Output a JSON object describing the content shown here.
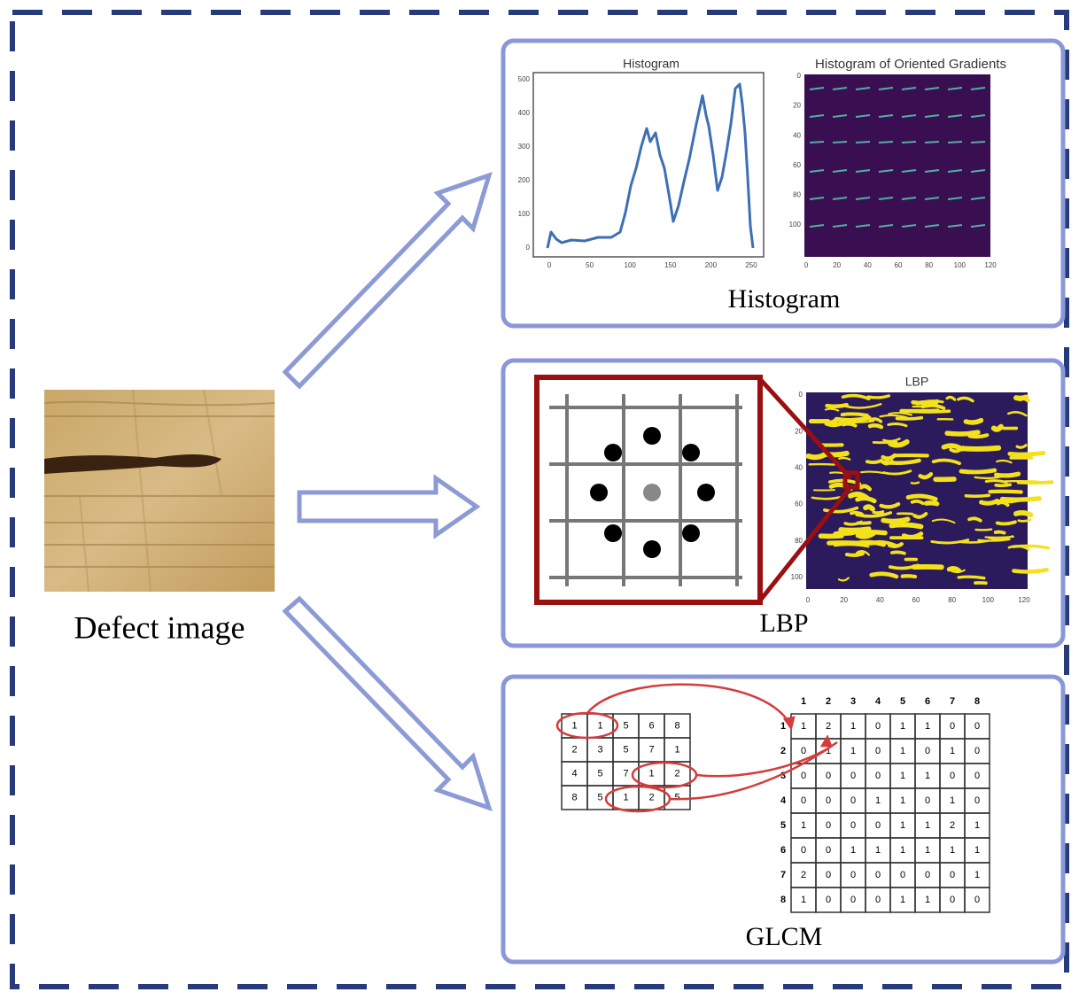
{
  "defect_image": {
    "label": "Defect image"
  },
  "histogram_panel": {
    "label": "Histogram",
    "histogram_plot": {
      "title": "Histogram",
      "xticks": [
        0,
        50,
        100,
        150,
        200,
        250
      ],
      "yticks": [
        0,
        100,
        200,
        300,
        400,
        500
      ]
    },
    "hog_plot": {
      "title": "Histogram of Oriented Gradients",
      "xticks": [
        0,
        20,
        40,
        60,
        80,
        100,
        120
      ],
      "yticks": [
        0,
        20,
        40,
        60,
        80,
        100
      ]
    }
  },
  "lbp_panel": {
    "label": "LBP",
    "lbp_plot": {
      "title": "LBP",
      "xticks": [
        0,
        20,
        40,
        60,
        80,
        100,
        120
      ],
      "yticks": [
        0,
        20,
        40,
        60,
        80,
        100
      ]
    }
  },
  "glcm_panel": {
    "label": "GLCM",
    "input_matrix": [
      [
        1,
        1,
        5,
        6,
        8
      ],
      [
        2,
        3,
        5,
        7,
        1
      ],
      [
        4,
        5,
        7,
        1,
        2
      ],
      [
        8,
        5,
        1,
        2,
        5
      ]
    ],
    "glcm_matrix": {
      "column_headers": [
        1,
        2,
        3,
        4,
        5,
        6,
        7,
        8
      ],
      "row_headers": [
        1,
        2,
        3,
        4,
        5,
        6,
        7,
        8
      ],
      "rows": [
        [
          1,
          2,
          1,
          0,
          1,
          1,
          0,
          0
        ],
        [
          0,
          1,
          1,
          0,
          1,
          0,
          1,
          0
        ],
        [
          0,
          0,
          0,
          0,
          1,
          1,
          0,
          0
        ],
        [
          0,
          0,
          0,
          1,
          1,
          0,
          1,
          0
        ],
        [
          1,
          0,
          0,
          0,
          1,
          1,
          2,
          1
        ],
        [
          0,
          0,
          1,
          1,
          1,
          1,
          1,
          1
        ],
        [
          2,
          0,
          0,
          0,
          0,
          0,
          0,
          1
        ],
        [
          1,
          0,
          0,
          0,
          1,
          1,
          0,
          0
        ]
      ]
    }
  }
}
